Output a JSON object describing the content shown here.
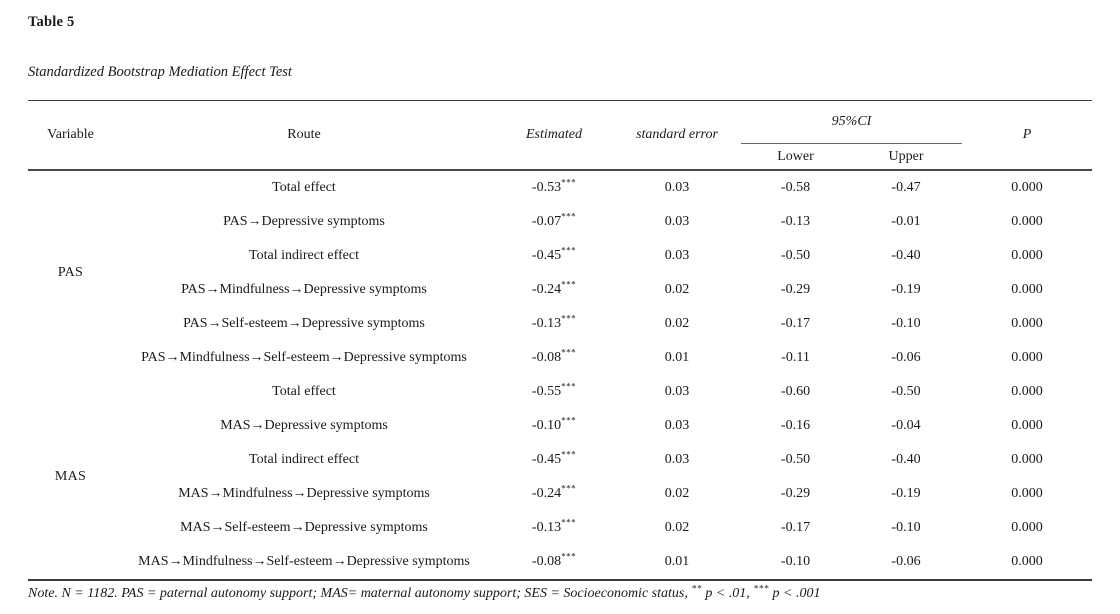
{
  "caption": {
    "label": "Table 5",
    "title": "Standardized Bootstrap Mediation Effect Test"
  },
  "columns": {
    "variable": "Variable",
    "route": "Route",
    "estimated": "Estimated",
    "standard_error": "standard error",
    "ci": "95%CI",
    "lower": "Lower",
    "upper": "Upper",
    "p": "P"
  },
  "groups": [
    {
      "variable": "PAS",
      "rows": [
        {
          "route": "Total effect",
          "estimated": "-0.53",
          "sig": "***",
          "se": "0.03",
          "lower": "-0.58",
          "upper": "-0.47",
          "p": "0.000"
        },
        {
          "route": "PAS→Depressive symptoms",
          "estimated": "-0.07",
          "sig": "***",
          "se": "0.03",
          "lower": "-0.13",
          "upper": "-0.01",
          "p": "0.000"
        },
        {
          "route": "Total indirect effect",
          "estimated": "-0.45",
          "sig": "***",
          "se": "0.03",
          "lower": "-0.50",
          "upper": "-0.40",
          "p": "0.000"
        },
        {
          "route": "PAS→Mindfulness→Depressive symptoms",
          "estimated": "-0.24",
          "sig": "***",
          "se": "0.02",
          "lower": "-0.29",
          "upper": "-0.19",
          "p": "0.000"
        },
        {
          "route": "PAS→Self-esteem→Depressive symptoms",
          "estimated": "-0.13",
          "sig": "***",
          "se": "0.02",
          "lower": "-0.17",
          "upper": "-0.10",
          "p": "0.000"
        },
        {
          "route": "PAS→Mindfulness→Self-esteem→Depressive symptoms",
          "estimated": "-0.08",
          "sig": "***",
          "se": "0.01",
          "lower": "-0.11",
          "upper": "-0.06",
          "p": "0.000"
        }
      ]
    },
    {
      "variable": "MAS",
      "rows": [
        {
          "route": "Total effect",
          "estimated": "-0.55",
          "sig": "***",
          "se": "0.03",
          "lower": "-0.60",
          "upper": "-0.50",
          "p": "0.000"
        },
        {
          "route": "MAS→Depressive symptoms",
          "estimated": "-0.10",
          "sig": "***",
          "se": "0.03",
          "lower": "-0.16",
          "upper": "-0.04",
          "p": "0.000"
        },
        {
          "route": "Total indirect effect",
          "estimated": "-0.45",
          "sig": "***",
          "se": "0.03",
          "lower": "-0.50",
          "upper": "-0.40",
          "p": "0.000"
        },
        {
          "route": "MAS→Mindfulness→Depressive symptoms",
          "estimated": "-0.24",
          "sig": "***",
          "se": "0.02",
          "lower": "-0.29",
          "upper": "-0.19",
          "p": "0.000"
        },
        {
          "route": "MAS→Self-esteem→Depressive symptoms",
          "estimated": "-0.13",
          "sig": "***",
          "se": "0.02",
          "lower": "-0.17",
          "upper": "-0.10",
          "p": "0.000"
        },
        {
          "route": "MAS→Mindfulness→Self-esteem→Depressive symptoms",
          "estimated": "-0.08",
          "sig": "***",
          "se": "0.01",
          "lower": "-0.10",
          "upper": "-0.06",
          "p": "0.000"
        }
      ]
    }
  ],
  "note": {
    "parts": [
      {
        "text": "Note. N = 1182. PAS = paternal autonomy support; MAS= maternal autonomy support; SES = Socioeconomic status, "
      },
      {
        "sup": "**"
      },
      {
        "text": " p < .01, "
      },
      {
        "sup": "***"
      },
      {
        "text": " p < .001"
      }
    ]
  }
}
